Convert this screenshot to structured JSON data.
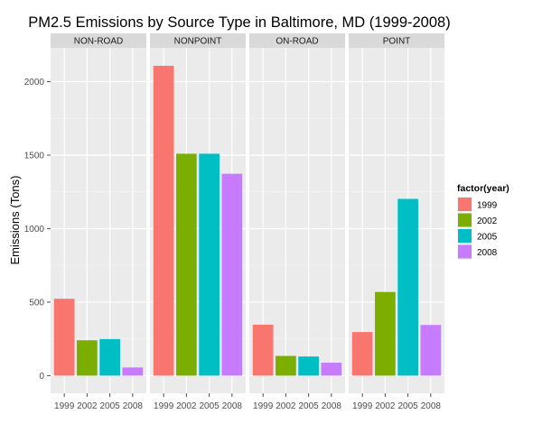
{
  "chart_data": {
    "type": "bar",
    "title": "PM2.5 Emissions by Source Type in Baltimore, MD (1999-2008)",
    "xlabel": "",
    "ylabel": "Emissions (Tons)",
    "ylim": [
      -120,
      2230
    ],
    "y_ticks": [
      0,
      500,
      1000,
      1500,
      2000
    ],
    "y_tick_labels": [
      "0",
      "500",
      "1000",
      "1500",
      "2000"
    ],
    "categories": [
      "1999",
      "2002",
      "2005",
      "2008"
    ],
    "facets": [
      "NON-ROAD",
      "NONPOINT",
      "ON-ROAD",
      "POINT"
    ],
    "grid": true,
    "legend": {
      "title": "factor(year)",
      "position": "right",
      "entries": [
        "1999",
        "2002",
        "2005",
        "2008"
      ]
    },
    "colors": [
      "#F8766D",
      "#7CAE00",
      "#00BFC4",
      "#C77CFF"
    ],
    "panels": [
      {
        "facet": "NON-ROAD",
        "values": [
          522.94,
          240.85,
          248.93,
          55.82
        ]
      },
      {
        "facet": "NONPOINT",
        "values": [
          2107.63,
          1509.5,
          1509.5,
          1373.21
        ]
      },
      {
        "facet": "ON-ROAD",
        "values": [
          346.82,
          134.31,
          130.43,
          88.28
        ]
      },
      {
        "facet": "POINT",
        "values": [
          296.8,
          569.26,
          1202.49,
          344.98
        ]
      }
    ]
  }
}
